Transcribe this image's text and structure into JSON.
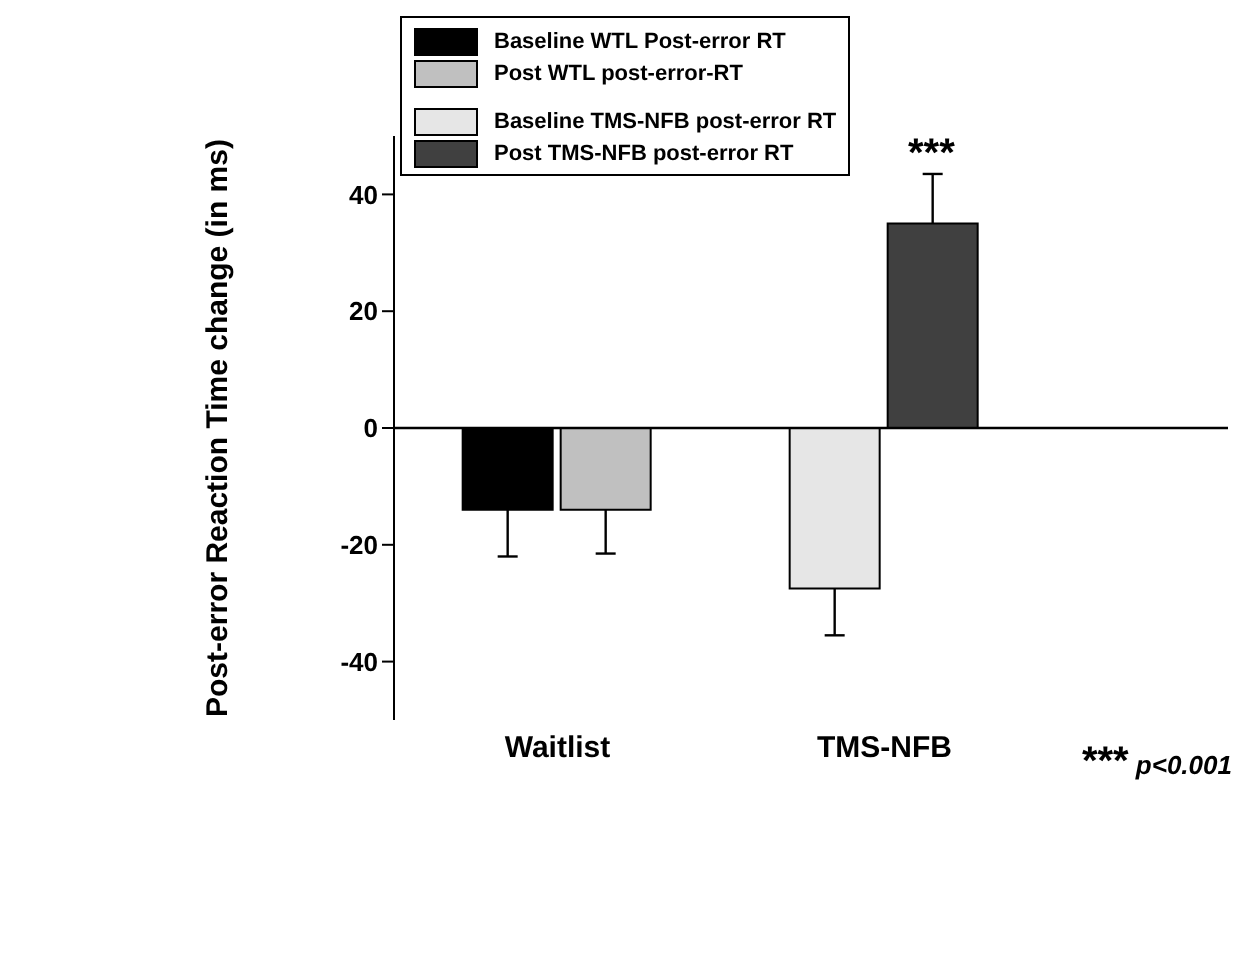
{
  "chart_data": {
    "type": "bar",
    "ylabel": "Post-error Reaction Time change (in ms)",
    "categories": [
      "Waitlist",
      "TMS-NFB"
    ],
    "series": [
      {
        "name": "Baseline WTL Post-error RT",
        "color": "#000000",
        "values": [
          -14,
          null
        ],
        "errors": [
          8,
          null
        ]
      },
      {
        "name": "Post WTL post-error-RT",
        "color": "#c0c0c0",
        "values": [
          -14,
          null
        ],
        "errors": [
          7.5,
          null
        ]
      },
      {
        "name": "Baseline TMS-NFB post-error RT",
        "color": "#e6e6e6",
        "values": [
          null,
          -27.5
        ],
        "errors": [
          null,
          8
        ]
      },
      {
        "name": "Post TMS-NFB post-error RT",
        "color": "#404040",
        "values": [
          null,
          35
        ],
        "errors": [
          null,
          8.5
        ]
      }
    ],
    "ylim": [
      -50,
      50
    ],
    "yticks": [
      -40,
      -20,
      0,
      20,
      40
    ],
    "legend": "top left",
    "ref_lines": [
      {
        "axis": "y",
        "value": 0
      }
    ],
    "annotations": [
      "***",
      "*** p<0.001"
    ]
  }
}
